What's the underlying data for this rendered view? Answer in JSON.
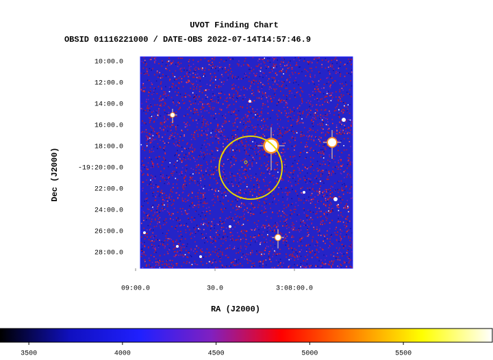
{
  "chart_data": {
    "type": "image",
    "title": "UVOT Finding Chart",
    "subtitle": "OBSID 01116221000 / DATE-OBS 2022-07-14T14:57:46.9",
    "xlabel": "RA (J2000)",
    "ylabel": "Dec (J2000)",
    "xlim": [
      47.2425,
      46.9084
    ],
    "ylim": [
      -19.4913,
      -19.1592
    ],
    "xticks": [
      {
        "value": 47.25,
        "label": "09:00.0"
      },
      {
        "value": 47.125,
        "label": "30.0"
      },
      {
        "value": 47.0,
        "label": "3:08:00.0"
      }
    ],
    "yticks": [
      {
        "value": -19.166667,
        "label": "10:00.0"
      },
      {
        "value": -19.2,
        "label": "12:00.0"
      },
      {
        "value": -19.233333,
        "label": "14:00.0"
      },
      {
        "value": -19.266667,
        "label": "16:00.0"
      },
      {
        "value": -19.3,
        "label": "18:00.0"
      },
      {
        "value": -19.333333,
        "label": "-19:20:00.0"
      },
      {
        "value": -19.366667,
        "label": "22:00.0"
      },
      {
        "value": -19.4,
        "label": "24:00.0"
      },
      {
        "value": -19.433333,
        "label": "26:00.0"
      },
      {
        "value": -19.466667,
        "label": "28:00.0"
      }
    ],
    "colorbar": {
      "clim": [
        3346,
        5975
      ],
      "ticks": [
        3500,
        4000,
        4500,
        5000,
        5500
      ],
      "colors": [
        "#000000",
        "#1010c0",
        "#2020ff",
        "#8020c0",
        "#ff0000",
        "#ff8000",
        "#ffff00",
        "#ffffff"
      ]
    }
  }
}
